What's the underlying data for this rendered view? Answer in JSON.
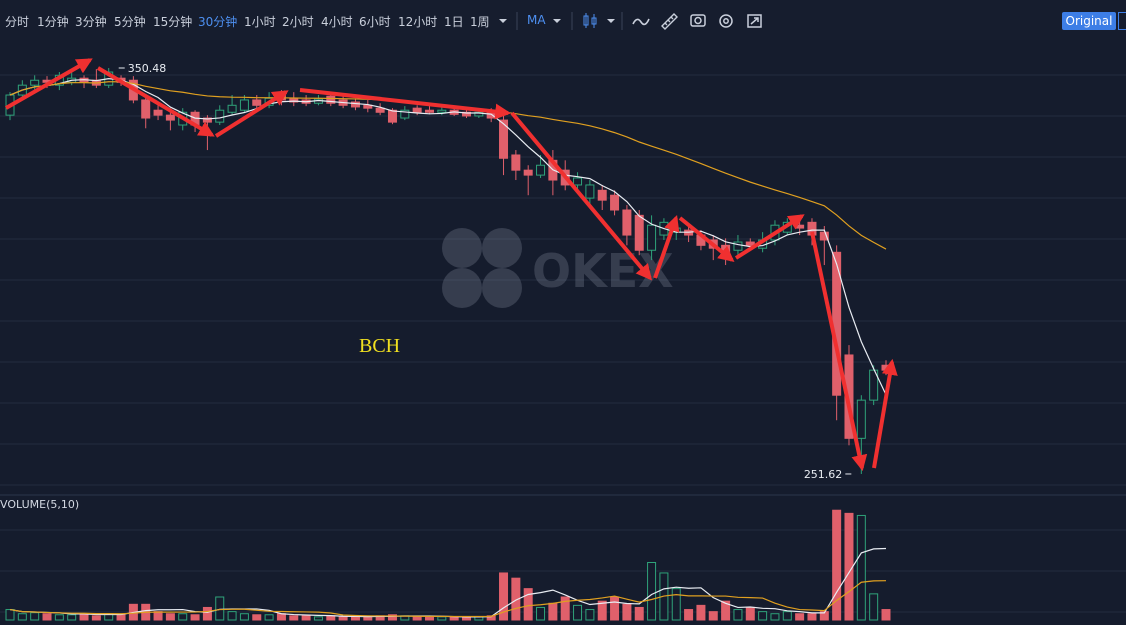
{
  "toolbar": {
    "intervals": [
      {
        "label": "分时"
      },
      {
        "label": "1分钟"
      },
      {
        "label": "3分钟"
      },
      {
        "label": "5分钟"
      },
      {
        "label": "15分钟"
      },
      {
        "label": "30分钟",
        "active": true
      },
      {
        "label": "1小时"
      },
      {
        "label": "2小时"
      },
      {
        "label": "4小时"
      },
      {
        "label": "6小时"
      },
      {
        "label": "12小时"
      },
      {
        "label": "1日"
      },
      {
        "label": "1周"
      }
    ],
    "indicator": "MA",
    "mode": "Original"
  },
  "watermark": "OKEX",
  "annotation": "BCH",
  "chart_data": {
    "type": "candlestick",
    "up_color": "#2fa37a",
    "down_color": "#e0606b",
    "ylim": [
      246.5,
      357.3
    ],
    "open": [
      339.0,
      343.9,
      346.3,
      347.5,
      346.3,
      347.0,
      348.0,
      347.5,
      346.3,
      348.0,
      347.5,
      342.7,
      340.2,
      339.0,
      336.6,
      339.7,
      338.3,
      337.3,
      339.7,
      340.2,
      342.7,
      341.4,
      343.9,
      343.1,
      342.7,
      341.9,
      343.6,
      342.7,
      342.2,
      341.4,
      340.7,
      340.2,
      338.3,
      340.7,
      340.2,
      339.7,
      340.2,
      339.7,
      338.8,
      339.7,
      337.8,
      329.3,
      325.6,
      324.4,
      328.0,
      325.6,
      322.0,
      318.8,
      320.7,
      319.5,
      315.9,
      314.6,
      306.1,
      309.8,
      310.5,
      311.0,
      309.8,
      308.6,
      307.3,
      306.1,
      308.1,
      306.6,
      308.6,
      310.5,
      312.2,
      312.9,
      310.5,
      305.6,
      280.6,
      260.3,
      269.6,
      278.1
    ],
    "high": [
      344.6,
      347.5,
      348.7,
      348.5,
      349.5,
      349.5,
      348.7,
      350.2,
      350.48,
      348.7,
      348.5,
      343.6,
      341.4,
      340.7,
      340.7,
      340.2,
      339.0,
      341.4,
      343.9,
      343.9,
      343.9,
      344.6,
      345.1,
      344.6,
      343.9,
      343.9,
      344.6,
      343.9,
      343.1,
      342.7,
      341.9,
      340.7,
      341.2,
      341.4,
      341.2,
      341.0,
      341.0,
      340.7,
      340.2,
      340.7,
      339.0,
      330.5,
      326.8,
      329.3,
      330.5,
      328.0,
      325.1,
      323.2,
      322.0,
      320.7,
      317.1,
      315.9,
      314.6,
      313.9,
      312.9,
      312.2,
      311.0,
      309.8,
      309.0,
      309.8,
      309.0,
      310.5,
      313.4,
      313.9,
      314.6,
      313.9,
      312.0,
      307.3,
      283.0,
      270.8,
      278.1,
      279.3
    ],
    "low": [
      337.8,
      342.7,
      345.1,
      345.6,
      345.1,
      346.3,
      345.6,
      345.6,
      345.6,
      346.1,
      341.9,
      335.8,
      337.8,
      335.3,
      335.3,
      334.9,
      330.5,
      336.6,
      339.0,
      339.7,
      340.7,
      340.7,
      341.4,
      341.2,
      341.2,
      341.4,
      341.2,
      340.7,
      340.2,
      339.7,
      339.0,
      336.8,
      337.8,
      339.0,
      339.2,
      339.0,
      338.8,
      338.3,
      338.3,
      337.3,
      324.4,
      323.2,
      319.5,
      323.7,
      319.5,
      320.7,
      320.7,
      317.1,
      315.9,
      314.6,
      307.3,
      304.9,
      303.7,
      308.6,
      308.6,
      308.1,
      306.1,
      303.7,
      302.5,
      304.9,
      306.1,
      305.6,
      307.3,
      309.8,
      309.8,
      307.3,
      302.5,
      264.7,
      258.6,
      251.62,
      268.4,
      275.7
    ],
    "close": [
      343.9,
      346.3,
      347.5,
      347.0,
      348.7,
      348.0,
      347.0,
      346.3,
      349.5,
      347.0,
      342.7,
      338.3,
      339.0,
      337.8,
      339.7,
      336.6,
      337.3,
      340.2,
      341.4,
      342.7,
      341.4,
      343.1,
      342.7,
      342.2,
      341.9,
      342.9,
      341.9,
      341.4,
      341.0,
      340.7,
      339.7,
      337.3,
      340.2,
      339.7,
      339.7,
      340.2,
      339.2,
      338.8,
      339.7,
      338.3,
      328.5,
      325.6,
      324.4,
      326.8,
      323.2,
      322.0,
      323.7,
      322.0,
      318.3,
      315.9,
      309.8,
      306.1,
      312.2,
      312.9,
      311.5,
      309.8,
      307.3,
      306.6,
      305.6,
      308.1,
      307.3,
      308.6,
      312.2,
      312.9,
      311.5,
      309.8,
      308.6,
      270.8,
      260.3,
      269.6,
      276.9,
      276.9
    ],
    "volume": {
      "title": "VOLUME(5,10)",
      "ylim": [
        0,
        110
      ],
      "values": [
        10,
        6,
        7,
        6,
        5,
        5,
        6,
        4,
        6,
        5,
        15,
        15,
        8,
        6,
        6,
        5,
        12,
        22,
        8,
        6,
        5,
        5,
        6,
        4,
        4,
        3,
        4,
        3,
        3,
        3,
        4,
        5,
        4,
        3,
        3,
        3,
        3,
        3,
        3,
        4,
        45,
        40,
        30,
        12,
        16,
        22,
        14,
        10,
        18,
        22,
        15,
        12,
        55,
        45,
        30,
        10,
        14,
        8,
        18,
        10,
        12,
        8,
        6,
        8,
        6,
        6,
        8,
        105,
        102,
        100,
        25,
        10
      ]
    }
  }
}
